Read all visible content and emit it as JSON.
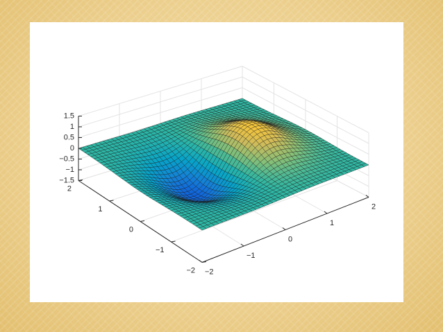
{
  "chart_data": {
    "type": "surface",
    "title": "",
    "xlabel": "",
    "ylabel": "",
    "zlabel": "",
    "function": "z = x * exp(-x^2 - y^2) scaled (peak ≈ 1.3, trough ≈ -1.3)",
    "xlim": [
      -2,
      2
    ],
    "ylim": [
      -2,
      2
    ],
    "zlim": [
      -1.5,
      1.5
    ],
    "grid": true,
    "mesh_lines": true,
    "colormap": "parula",
    "colormap_stops": [
      "#352a87",
      "#0f5cdd",
      "#1481d6",
      "#06a4ca",
      "#2eb7a4",
      "#87bf77",
      "#d1bb59",
      "#fec832",
      "#f9fb0e"
    ],
    "x_ticks": [
      "−2",
      "−1",
      "0",
      "1",
      "2"
    ],
    "y_ticks": [
      "−2",
      "−1",
      "0",
      "1",
      "2"
    ],
    "z_ticks": [
      "−1.5",
      "−1",
      "−0.5",
      "0",
      "0.5",
      "1",
      "1.5"
    ],
    "x_tick_values": [
      -2,
      -1,
      0,
      1,
      2
    ],
    "y_tick_values": [
      -2,
      -1,
      0,
      1,
      2
    ],
    "z_tick_values": [
      -1.5,
      -1,
      -0.5,
      0,
      0.5,
      1,
      1.5
    ],
    "peak": {
      "x": 0.7,
      "y": 0,
      "z": 1.3
    },
    "trough": {
      "x": -0.7,
      "y": 0,
      "z": -1.3
    }
  }
}
